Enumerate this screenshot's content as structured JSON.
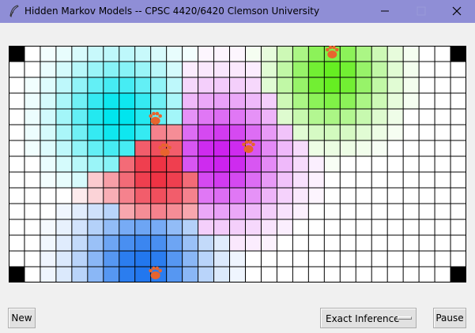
{
  "window": {
    "title": "Hidden Markov Models -- CPSC 4420/6420 Clemson University",
    "title_bar_color": "#8f8ed6"
  },
  "grid": {
    "columns": 29,
    "rows": 15,
    "cell_background": "#ffffff",
    "line_color": "#000000",
    "corner_markers": [
      "top-left",
      "top-right",
      "bottom-left",
      "bottom-right"
    ],
    "corner_marker_color": "#000000",
    "belief_blobs": [
      {
        "name": "cyan",
        "color": "#00e5ee",
        "center": [
          7,
          4.5
        ],
        "spread": 2.4
      },
      {
        "name": "green",
        "color": "#66ee22",
        "center": [
          20.5,
          2
        ],
        "spread": 2.2
      },
      {
        "name": "magenta",
        "color": "#cc22ee",
        "center": [
          13.5,
          7
        ],
        "spread": 2.6
      },
      {
        "name": "red",
        "color": "#ee3344",
        "center": [
          9.5,
          8
        ],
        "spread": 2.4
      },
      {
        "name": "blue",
        "color": "#2277ee",
        "center": [
          8.5,
          14
        ],
        "spread": 2.6
      }
    ],
    "ghost_markers": [
      {
        "icon": "paw-icon",
        "cell": [
          20.5,
          0.4
        ]
      },
      {
        "icon": "paw-icon",
        "cell": [
          9.3,
          4.6
        ]
      },
      {
        "icon": "paw-icon",
        "cell": [
          9.9,
          6.6
        ]
      },
      {
        "icon": "paw-icon",
        "cell": [
          15.2,
          6.4
        ]
      },
      {
        "icon": "paw-icon",
        "cell": [
          9.3,
          14.4
        ]
      }
    ],
    "paw_color": "#e8642e"
  },
  "controls": {
    "new_label": "New",
    "inference_label": "Exact Inference",
    "pause_label": "Pause"
  }
}
